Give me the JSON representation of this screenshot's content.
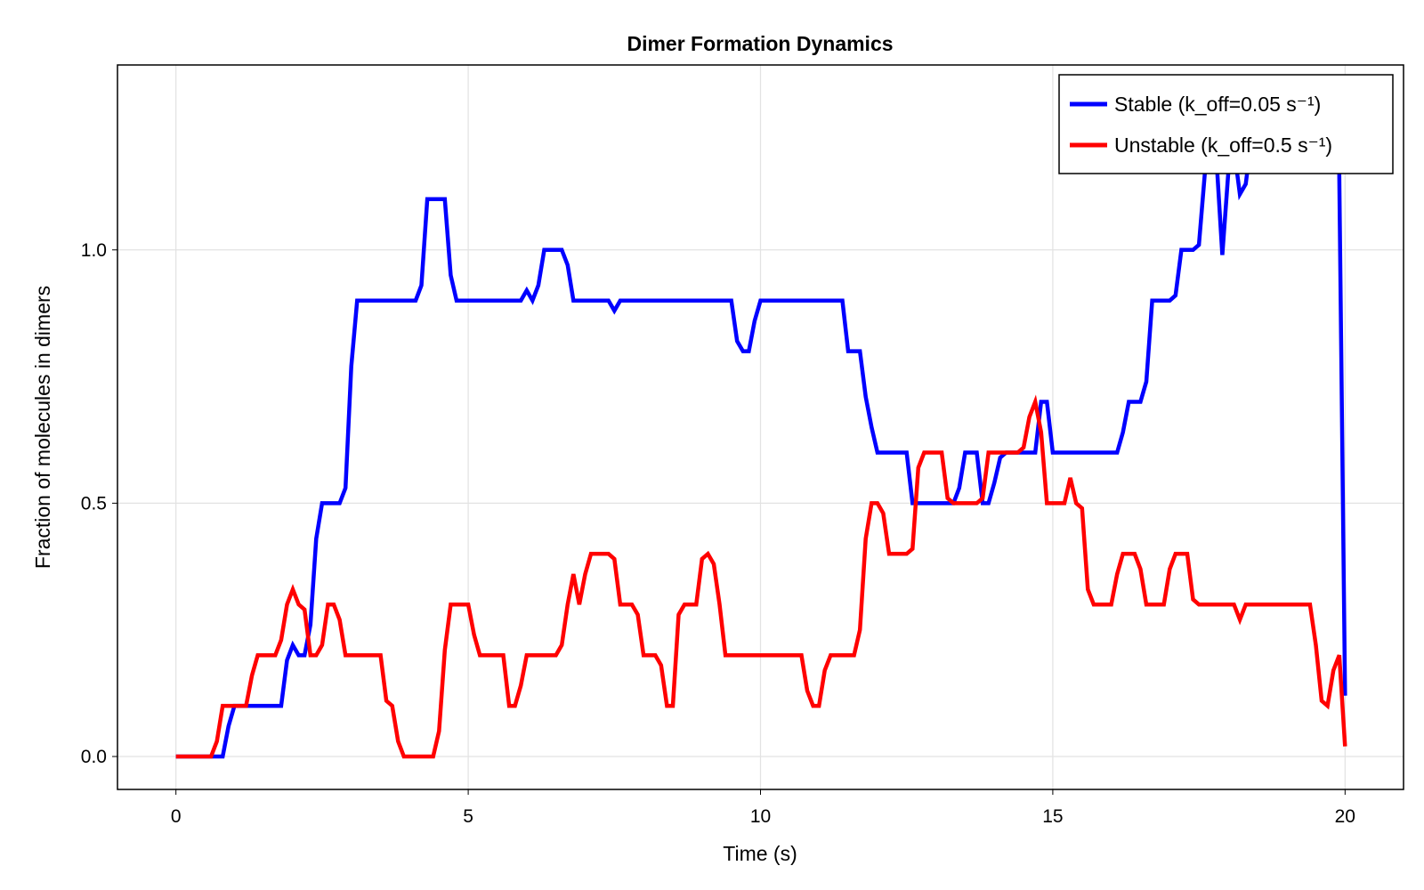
{
  "chart_data": {
    "type": "line",
    "title": "Dimer Formation Dynamics",
    "xlabel": "Time (s)",
    "ylabel": "Fraction of molecules in dimers",
    "xlim": [
      -1.0,
      21.0
    ],
    "ylim": [
      -0.065,
      1.365
    ],
    "xticks": [
      0,
      5,
      10,
      15,
      20
    ],
    "yticks": [
      0.0,
      0.5,
      1.0
    ],
    "xtick_labels": [
      "0",
      "5",
      "10",
      "15",
      "20"
    ],
    "ytick_labels": [
      "0.0",
      "0.5",
      "1.0"
    ],
    "grid": true,
    "legend_position": "top-right",
    "series": [
      {
        "name": "Stable (k_off=0.05 s⁻¹)",
        "color": "#0000ff",
        "points": [
          [
            0.0,
            0.0
          ],
          [
            0.5,
            0.0
          ],
          [
            0.8,
            0.0
          ],
          [
            0.9,
            0.06
          ],
          [
            1.0,
            0.1
          ],
          [
            1.5,
            0.1
          ],
          [
            1.8,
            0.1
          ],
          [
            1.9,
            0.19
          ],
          [
            2.0,
            0.22
          ],
          [
            2.1,
            0.2
          ],
          [
            2.2,
            0.2
          ],
          [
            2.3,
            0.26
          ],
          [
            2.4,
            0.43
          ],
          [
            2.5,
            0.5
          ],
          [
            2.8,
            0.5
          ],
          [
            2.9,
            0.53
          ],
          [
            3.0,
            0.77
          ],
          [
            3.1,
            0.9
          ],
          [
            4.1,
            0.9
          ],
          [
            4.2,
            0.93
          ],
          [
            4.3,
            1.1
          ],
          [
            4.6,
            1.1
          ],
          [
            4.7,
            0.95
          ],
          [
            4.8,
            0.9
          ],
          [
            5.9,
            0.9
          ],
          [
            6.0,
            0.92
          ],
          [
            6.1,
            0.9
          ],
          [
            6.2,
            0.93
          ],
          [
            6.3,
            1.0
          ],
          [
            6.6,
            1.0
          ],
          [
            6.7,
            0.97
          ],
          [
            6.8,
            0.9
          ],
          [
            7.4,
            0.9
          ],
          [
            7.5,
            0.88
          ],
          [
            7.6,
            0.9
          ],
          [
            9.5,
            0.9
          ],
          [
            9.6,
            0.82
          ],
          [
            9.7,
            0.8
          ],
          [
            9.8,
            0.8
          ],
          [
            9.9,
            0.86
          ],
          [
            10.0,
            0.9
          ],
          [
            11.4,
            0.9
          ],
          [
            11.5,
            0.8
          ],
          [
            11.7,
            0.8
          ],
          [
            11.8,
            0.71
          ],
          [
            11.9,
            0.65
          ],
          [
            12.0,
            0.6
          ],
          [
            12.5,
            0.6
          ],
          [
            12.6,
            0.5
          ],
          [
            13.3,
            0.5
          ],
          [
            13.4,
            0.53
          ],
          [
            13.5,
            0.6
          ],
          [
            13.7,
            0.6
          ],
          [
            13.8,
            0.5
          ],
          [
            13.9,
            0.5
          ],
          [
            14.0,
            0.54
          ],
          [
            14.1,
            0.59
          ],
          [
            14.2,
            0.6
          ],
          [
            14.7,
            0.6
          ],
          [
            14.8,
            0.7
          ],
          [
            14.9,
            0.7
          ],
          [
            15.0,
            0.6
          ],
          [
            16.1,
            0.6
          ],
          [
            16.2,
            0.64
          ],
          [
            16.3,
            0.7
          ],
          [
            16.5,
            0.7
          ],
          [
            16.6,
            0.74
          ],
          [
            16.7,
            0.9
          ],
          [
            17.0,
            0.9
          ],
          [
            17.1,
            0.91
          ],
          [
            17.2,
            1.0
          ],
          [
            17.4,
            1.0
          ],
          [
            17.5,
            1.01
          ],
          [
            17.6,
            1.15
          ],
          [
            17.7,
            1.25
          ],
          [
            17.8,
            1.18
          ],
          [
            17.9,
            0.99
          ],
          [
            18.0,
            1.15
          ],
          [
            18.1,
            1.2
          ],
          [
            18.2,
            1.11
          ],
          [
            18.3,
            1.13
          ],
          [
            18.4,
            1.22
          ],
          [
            18.6,
            1.3
          ],
          [
            19.8,
            1.3
          ],
          [
            19.9,
            1.15
          ],
          [
            20.0,
            0.12
          ]
        ]
      },
      {
        "name": "Unstable (k_off=0.5 s⁻¹)",
        "color": "#ff0000",
        "points": [
          [
            0.0,
            0.0
          ],
          [
            0.6,
            0.0
          ],
          [
            0.7,
            0.03
          ],
          [
            0.8,
            0.1
          ],
          [
            1.2,
            0.1
          ],
          [
            1.3,
            0.16
          ],
          [
            1.4,
            0.2
          ],
          [
            1.7,
            0.2
          ],
          [
            1.8,
            0.23
          ],
          [
            1.9,
            0.3
          ],
          [
            2.0,
            0.33
          ],
          [
            2.1,
            0.3
          ],
          [
            2.2,
            0.29
          ],
          [
            2.3,
            0.2
          ],
          [
            2.4,
            0.2
          ],
          [
            2.5,
            0.22
          ],
          [
            2.6,
            0.3
          ],
          [
            2.7,
            0.3
          ],
          [
            2.8,
            0.27
          ],
          [
            2.9,
            0.2
          ],
          [
            3.5,
            0.2
          ],
          [
            3.6,
            0.11
          ],
          [
            3.7,
            0.1
          ],
          [
            3.8,
            0.03
          ],
          [
            3.9,
            0.0
          ],
          [
            4.4,
            0.0
          ],
          [
            4.5,
            0.05
          ],
          [
            4.6,
            0.21
          ],
          [
            4.7,
            0.3
          ],
          [
            5.0,
            0.3
          ],
          [
            5.1,
            0.24
          ],
          [
            5.2,
            0.2
          ],
          [
            5.6,
            0.2
          ],
          [
            5.7,
            0.1
          ],
          [
            5.8,
            0.1
          ],
          [
            5.9,
            0.14
          ],
          [
            6.0,
            0.2
          ],
          [
            6.5,
            0.2
          ],
          [
            6.6,
            0.22
          ],
          [
            6.7,
            0.3
          ],
          [
            6.8,
            0.36
          ],
          [
            6.9,
            0.3
          ],
          [
            7.0,
            0.36
          ],
          [
            7.1,
            0.4
          ],
          [
            7.4,
            0.4
          ],
          [
            7.5,
            0.39
          ],
          [
            7.6,
            0.3
          ],
          [
            7.8,
            0.3
          ],
          [
            7.9,
            0.28
          ],
          [
            8.0,
            0.2
          ],
          [
            8.2,
            0.2
          ],
          [
            8.3,
            0.18
          ],
          [
            8.4,
            0.1
          ],
          [
            8.5,
            0.1
          ],
          [
            8.6,
            0.28
          ],
          [
            8.7,
            0.3
          ],
          [
            8.9,
            0.3
          ],
          [
            9.0,
            0.39
          ],
          [
            9.1,
            0.4
          ],
          [
            9.2,
            0.38
          ],
          [
            9.3,
            0.3
          ],
          [
            9.4,
            0.2
          ],
          [
            10.7,
            0.2
          ],
          [
            10.8,
            0.13
          ],
          [
            10.9,
            0.1
          ],
          [
            11.0,
            0.1
          ],
          [
            11.1,
            0.17
          ],
          [
            11.2,
            0.2
          ],
          [
            11.6,
            0.2
          ],
          [
            11.7,
            0.25
          ],
          [
            11.8,
            0.43
          ],
          [
            11.9,
            0.5
          ],
          [
            12.0,
            0.5
          ],
          [
            12.1,
            0.48
          ],
          [
            12.2,
            0.4
          ],
          [
            12.5,
            0.4
          ],
          [
            12.6,
            0.41
          ],
          [
            12.7,
            0.57
          ],
          [
            12.8,
            0.6
          ],
          [
            13.1,
            0.6
          ],
          [
            13.2,
            0.51
          ],
          [
            13.3,
            0.5
          ],
          [
            13.7,
            0.5
          ],
          [
            13.8,
            0.51
          ],
          [
            13.9,
            0.6
          ],
          [
            14.4,
            0.6
          ],
          [
            14.5,
            0.61
          ],
          [
            14.6,
            0.67
          ],
          [
            14.7,
            0.7
          ],
          [
            14.8,
            0.64
          ],
          [
            14.9,
            0.5
          ],
          [
            15.2,
            0.5
          ],
          [
            15.3,
            0.55
          ],
          [
            15.4,
            0.5
          ],
          [
            15.5,
            0.49
          ],
          [
            15.6,
            0.33
          ],
          [
            15.7,
            0.3
          ],
          [
            16.0,
            0.3
          ],
          [
            16.1,
            0.36
          ],
          [
            16.2,
            0.4
          ],
          [
            16.4,
            0.4
          ],
          [
            16.5,
            0.37
          ],
          [
            16.6,
            0.3
          ],
          [
            16.9,
            0.3
          ],
          [
            17.0,
            0.37
          ],
          [
            17.1,
            0.4
          ],
          [
            17.3,
            0.4
          ],
          [
            17.4,
            0.31
          ],
          [
            17.5,
            0.3
          ],
          [
            18.1,
            0.3
          ],
          [
            18.2,
            0.27
          ],
          [
            18.3,
            0.3
          ],
          [
            19.4,
            0.3
          ],
          [
            19.5,
            0.22
          ],
          [
            19.6,
            0.11
          ],
          [
            19.7,
            0.1
          ],
          [
            19.8,
            0.17
          ],
          [
            19.9,
            0.2
          ],
          [
            20.0,
            0.02
          ]
        ]
      }
    ]
  }
}
